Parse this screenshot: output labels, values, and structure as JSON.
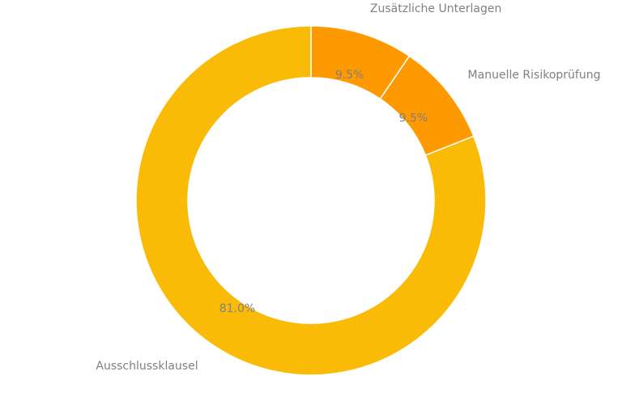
{
  "chart_data": {
    "type": "pie",
    "variant": "donut",
    "title": "",
    "categories": [
      "Zusätzliche Unterlagen",
      "Manuelle Risikoprüfung",
      "Ausschlussklausel"
    ],
    "values": [
      9.5,
      9.5,
      81.0
    ],
    "value_labels": [
      "9.5%",
      "9.5%",
      "81.0%"
    ],
    "colors": [
      "#FF9900",
      "#FF9900",
      "#F9BB06"
    ],
    "legend": "none",
    "start": "top",
    "direction": "clockwise"
  }
}
